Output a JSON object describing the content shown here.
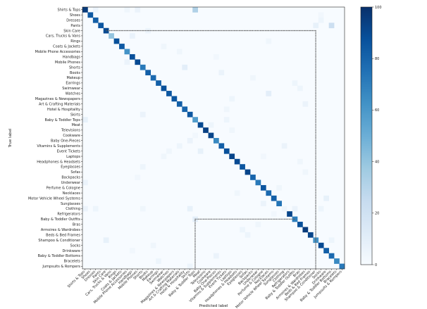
{
  "chart_data": {
    "type": "heatmap",
    "title": "",
    "xlabel": "Predicted label",
    "ylabel": "True label",
    "categories": [
      "Shirts & Tops",
      "Shoes",
      "Dresses",
      "Pants",
      "Skin Care",
      "Cars, Trucks & Vans",
      "Rings",
      "Coats & Jackets",
      "Mobile Phone Accessories",
      "Handbags",
      "Mobile Phones",
      "Shorts",
      "Books",
      "Makeup",
      "Earrings",
      "Swimwear",
      "Watches",
      "Magazines & Newspapers",
      "Art & Crafting Materials",
      "Hotel & Hospitality",
      "Skirts",
      "Baby & Toddler Tops",
      "Meat",
      "Televisions",
      "Cookware",
      "Baby One-Pieces",
      "Vitamins & Supplements",
      "Event Tickets",
      "Laptops",
      "Headphones & Headsets",
      "Eyeglasses",
      "Sofas",
      "Backpacks",
      "Underwear",
      "Perfume & Cologne",
      "Necklaces",
      "Motor Vehicle Wheel Systems",
      "Sunglasses",
      "Clothing",
      "Refrigerators",
      "Baby & Toddler Outfits",
      "Bras",
      "Armoires & Wardrobes",
      "Beds & Bed Frames",
      "Shampoo & Conditioner",
      "Socks",
      "Drinkware",
      "Baby & Toddler Bottoms",
      "Bracelets",
      "Jumpsuits & Rompers"
    ],
    "diagonal": [
      96,
      84,
      82,
      85,
      90,
      40,
      88,
      84,
      62,
      88,
      90,
      72,
      82,
      78,
      82,
      88,
      85,
      86,
      82,
      80,
      85,
      58,
      90,
      94,
      92,
      66,
      82,
      88,
      92,
      90,
      86,
      92,
      80,
      72,
      86,
      78,
      82,
      74,
      4,
      92,
      70,
      88,
      96,
      92,
      62,
      90,
      82,
      78,
      66,
      72
    ],
    "offdiag": [
      [
        0,
        21,
        32
      ],
      [
        0,
        10,
        6
      ],
      [
        0,
        8,
        4
      ],
      [
        0,
        2,
        5
      ],
      [
        2,
        45,
        5
      ],
      [
        3,
        47,
        22
      ],
      [
        3,
        44,
        8
      ],
      [
        4,
        12,
        5
      ],
      [
        7,
        15,
        4
      ],
      [
        8,
        18,
        4
      ],
      [
        9,
        25,
        3
      ],
      [
        11,
        19,
        10
      ],
      [
        12,
        26,
        6
      ],
      [
        13,
        32,
        4
      ],
      [
        14,
        40,
        5
      ],
      [
        16,
        35,
        10
      ],
      [
        17,
        28,
        5
      ],
      [
        18,
        42,
        6
      ],
      [
        19,
        27,
        4
      ],
      [
        20,
        11,
        6
      ],
      [
        21,
        0,
        8
      ],
      [
        21,
        27,
        5
      ],
      [
        24,
        21,
        3
      ],
      [
        25,
        20,
        6
      ],
      [
        26,
        18,
        5
      ],
      [
        26,
        38,
        6
      ],
      [
        27,
        16,
        4
      ],
      [
        27,
        22,
        8
      ],
      [
        28,
        34,
        3
      ],
      [
        29,
        41,
        4
      ],
      [
        30,
        11,
        5
      ],
      [
        32,
        10,
        3
      ],
      [
        33,
        0,
        6
      ],
      [
        34,
        37,
        4
      ],
      [
        35,
        29,
        4
      ],
      [
        36,
        46,
        8
      ],
      [
        37,
        34,
        6
      ],
      [
        38,
        0,
        6
      ],
      [
        38,
        2,
        5
      ],
      [
        38,
        11,
        4
      ],
      [
        38,
        20,
        8
      ],
      [
        38,
        40,
        6
      ],
      [
        38,
        45,
        5
      ],
      [
        40,
        21,
        10
      ],
      [
        41,
        33,
        4
      ],
      [
        42,
        30,
        5
      ],
      [
        44,
        4,
        8
      ],
      [
        44,
        47,
        5
      ],
      [
        45,
        13,
        4
      ],
      [
        46,
        9,
        3
      ],
      [
        47,
        25,
        6
      ],
      [
        48,
        14,
        5
      ],
      [
        49,
        20,
        5
      ],
      [
        5,
        9,
        7
      ],
      [
        6,
        35,
        4
      ],
      [
        10,
        8,
        6
      ],
      [
        15,
        41,
        5
      ],
      [
        22,
        24,
        5
      ],
      [
        23,
        28,
        4
      ],
      [
        31,
        42,
        4
      ],
      [
        39,
        36,
        3
      ],
      [
        43,
        31,
        5
      ],
      [
        1,
        45,
        3
      ],
      [
        28,
        15,
        4
      ]
    ],
    "colorbar": {
      "min": 0,
      "max": 100,
      "ticks": [
        0,
        20,
        40,
        60,
        80,
        100
      ]
    },
    "colormap": "Blues",
    "highlights": [
      {
        "row": 4,
        "col": 44
      },
      {
        "row": 40,
        "col": 21
      }
    ],
    "highlight_color": "#555555"
  }
}
